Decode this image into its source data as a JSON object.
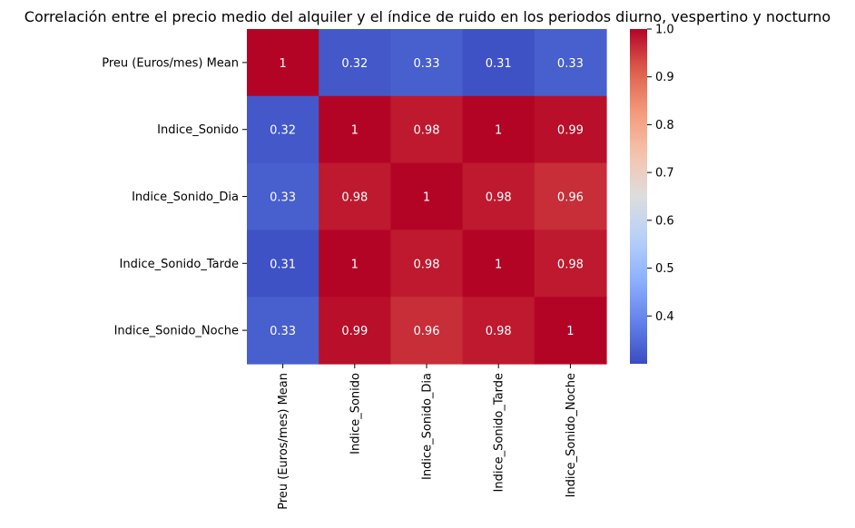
{
  "chart_data": {
    "type": "heatmap",
    "title": "Correlación entre el precio medio del alquiler y el índice de ruido en los periodos diurno, vespertino y nocturno",
    "xlabel": "",
    "ylabel": "",
    "rows": [
      "Preu (Euros/mes) Mean",
      "Indice_Sonido",
      "Indice_Sonido_Dia",
      "Indice_Sonido_Tarde",
      "Indice_Sonido_Noche"
    ],
    "columns": [
      "Preu (Euros/mes) Mean",
      "Indice_Sonido",
      "Indice_Sonido_Dia",
      "Indice_Sonido_Tarde",
      "Indice_Sonido_Noche"
    ],
    "values": [
      [
        1.0,
        0.32,
        0.33,
        0.31,
        0.33
      ],
      [
        0.32,
        1.0,
        0.98,
        1.0,
        0.99
      ],
      [
        0.33,
        0.98,
        1.0,
        0.98,
        0.96
      ],
      [
        0.31,
        1.0,
        0.98,
        1.0,
        0.98
      ],
      [
        0.33,
        0.99,
        0.96,
        0.98,
        1.0
      ]
    ],
    "labels": [
      [
        "1",
        "0.32",
        "0.33",
        "0.31",
        "0.33"
      ],
      [
        "0.32",
        "1",
        "0.98",
        "1",
        "0.99"
      ],
      [
        "0.33",
        "0.98",
        "1",
        "0.98",
        "0.96"
      ],
      [
        "0.31",
        "1",
        "0.98",
        "1",
        "0.98"
      ],
      [
        "0.33",
        "0.99",
        "0.96",
        "0.98",
        "1"
      ]
    ],
    "colormap": "coolwarm",
    "vmin": 0.3,
    "vmax": 1.0,
    "colorbar_ticks": [
      0.4,
      0.5,
      0.6,
      0.7,
      0.8,
      0.9,
      1.0
    ],
    "colorbar_tick_labels": [
      "0.4",
      "0.5",
      "0.6",
      "0.7",
      "0.8",
      "0.9",
      "1.0"
    ],
    "legend": "colorbar-right"
  }
}
